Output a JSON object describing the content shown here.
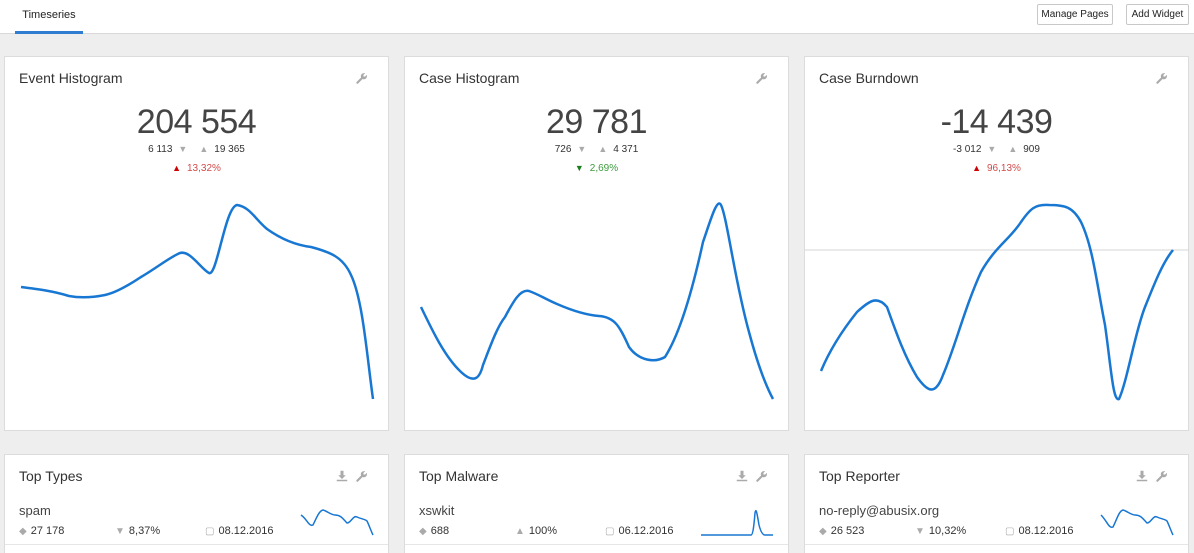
{
  "header": {
    "tab_label": "Timeseries",
    "manage_pages_label": "Manage Pages",
    "add_widget_label": "Add Widget"
  },
  "colors": {
    "accent": "#2f7dd1",
    "line": "#1877d2",
    "up": "#d00000",
    "down": "#1d7d1d"
  },
  "widgets": [
    {
      "title": "Event Histogram",
      "value": "204 554",
      "min": "6 113",
      "max": "19 365",
      "change": "13,32%",
      "direction": "up",
      "icons": [
        "wrench-icon"
      ]
    },
    {
      "title": "Case Histogram",
      "value": "29 781",
      "min": "726",
      "max": "4 371",
      "change": "2,69%",
      "direction": "down",
      "icons": [
        "wrench-icon"
      ]
    },
    {
      "title": "Case Burndown",
      "value": "-14 439",
      "min": "-3 012",
      "max": "909",
      "change": "96,13%",
      "direction": "up",
      "icons": [
        "wrench-icon"
      ]
    }
  ],
  "top_widgets": [
    {
      "title": "Top Types",
      "item": "spam",
      "count": "27 178",
      "share": "8,37%",
      "date": "08.12.2016",
      "icons": [
        "download-icon",
        "wrench-icon"
      ]
    },
    {
      "title": "Top Malware",
      "item": "xswkit",
      "count": "688",
      "share": "100%",
      "date": "06.12.2016",
      "icons": [
        "download-icon",
        "wrench-icon"
      ]
    },
    {
      "title": "Top Reporter",
      "item": "no-reply@abusix.org",
      "count": "26 523",
      "share": "10,32%",
      "date": "08.12.2016",
      "icons": [
        "download-icon",
        "wrench-icon"
      ]
    }
  ]
}
